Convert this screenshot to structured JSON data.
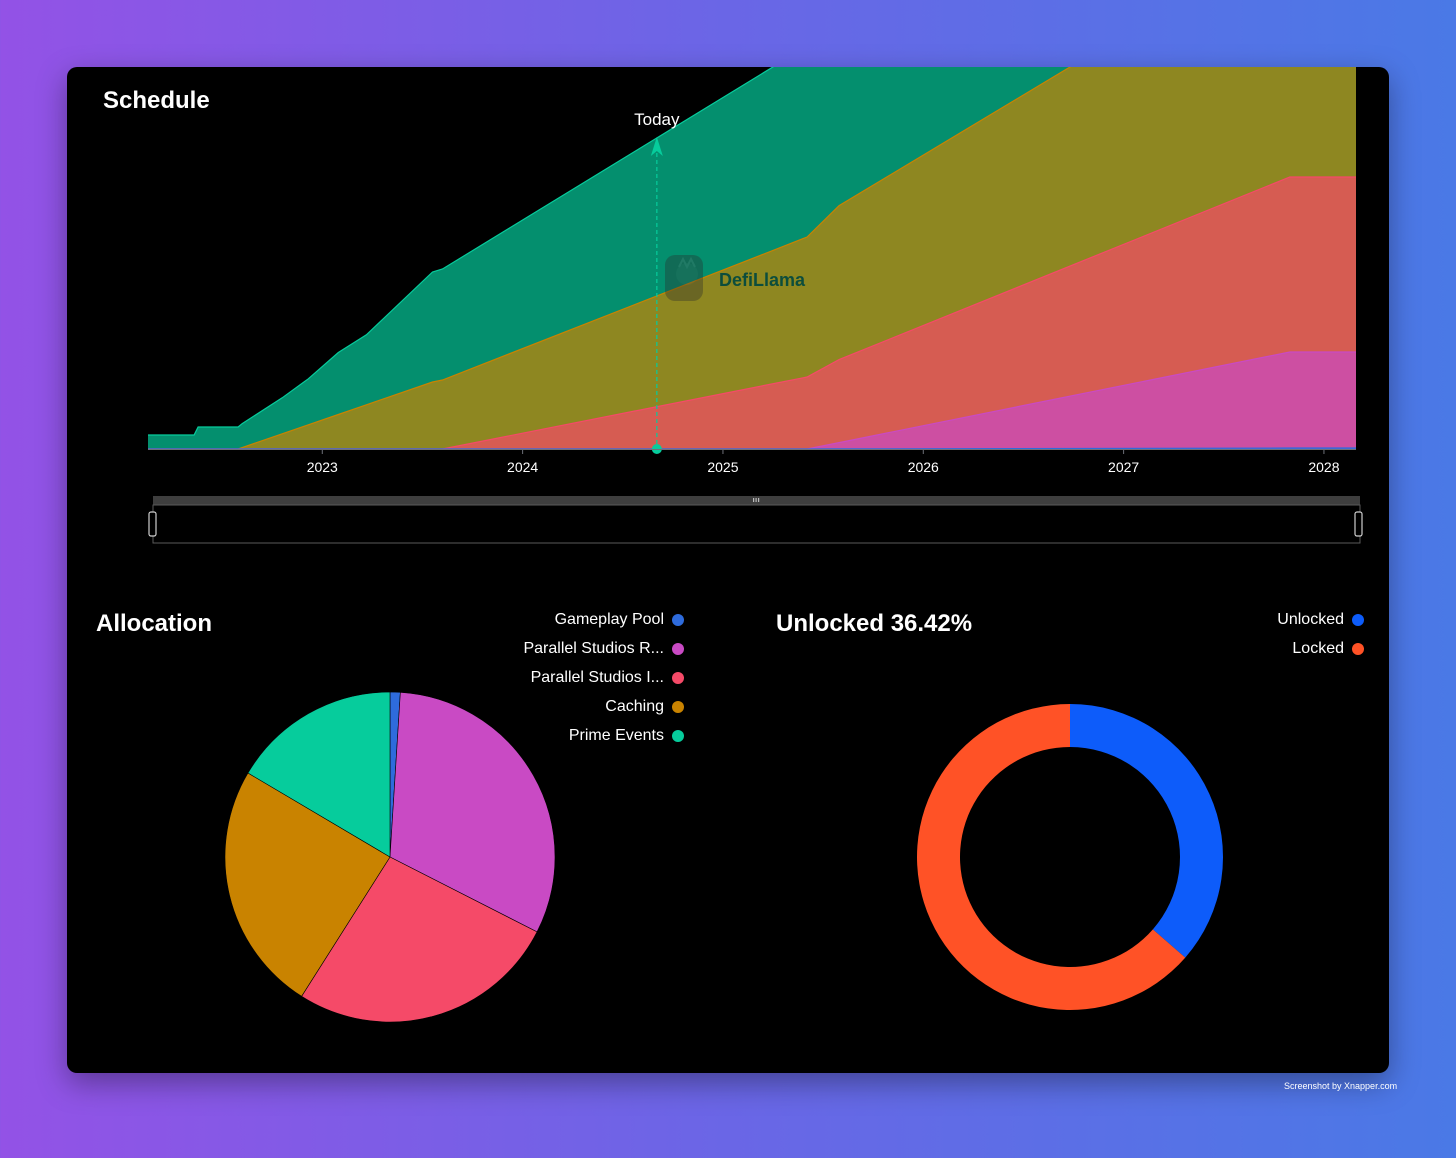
{
  "schedule": {
    "title": "Schedule",
    "today_label": "Today",
    "brand_watermark": "DefiLlama"
  },
  "allocation": {
    "title": "Allocation"
  },
  "unlocked": {
    "title": "Unlocked 36.42%"
  },
  "screenshot_credit": "Screenshot by Xnapper.com",
  "colors": {
    "gameplay_pool": "#2e6bdc",
    "parallel_studios_r": "#c94ac4",
    "parallel_studios_i": "#f54a68",
    "caching": "#c98300",
    "prime_events": "#06cc9c",
    "unlocked": "#0d5cfa",
    "locked": "#ff5226"
  },
  "chart_data": [
    {
      "type": "area",
      "stacked": true,
      "title": "Schedule",
      "x_unit": "year",
      "x_ticks": [
        "2023",
        "2024",
        "2025",
        "2026",
        "2027",
        "2028"
      ],
      "xlim": [
        2022.13,
        2028.16
      ],
      "today_marker": 2024.67,
      "series": [
        {
          "name": "Gameplay Pool",
          "color": "#2e6bdc",
          "points": [
            [
              2022.13,
              0
            ],
            [
              2025.4,
              0
            ],
            [
              2027.9,
              1
            ],
            [
              2028.16,
              1
            ]
          ]
        },
        {
          "name": "Parallel Studios R...",
          "color": "#c94ac4",
          "points": [
            [
              2022.13,
              0
            ],
            [
              2025.42,
              0
            ],
            [
              2027.83,
              96
            ],
            [
              2028.16,
              96
            ]
          ]
        },
        {
          "name": "Parallel Studios I...",
          "color": "#f54a68",
          "points": [
            [
              2022.13,
              0
            ],
            [
              2023.6,
              0
            ],
            [
              2025.42,
              72
            ],
            [
              2025.58,
              83
            ],
            [
              2027.83,
              175
            ],
            [
              2028.16,
              175
            ]
          ]
        },
        {
          "name": "Caching",
          "color": "#c98300",
          "points": [
            [
              2022.13,
              0
            ],
            [
              2022.58,
              0
            ],
            [
              2023.55,
              67
            ],
            [
              2025.42,
              140
            ],
            [
              2025.58,
              154
            ],
            [
              2027.83,
              242
            ],
            [
              2028.16,
              242
            ]
          ]
        },
        {
          "name": "Prime Events",
          "color": "#06cc9c",
          "points": [
            [
              2022.13,
              14
            ],
            [
              2022.36,
              14
            ],
            [
              2022.38,
              22
            ],
            [
              2022.58,
              22
            ],
            [
              2022.6,
              24
            ],
            [
              2022.6,
              28
            ],
            [
              2022.8,
              36
            ],
            [
              2022.8,
              42
            ],
            [
              2022.93,
              46
            ],
            [
              2022.93,
              55
            ],
            [
              2023.08,
              62
            ],
            [
              2023.08,
              67
            ],
            [
              2023.22,
              70
            ],
            [
              2023.22,
              82
            ],
            [
              2023.55,
              110
            ],
            [
              2023.6,
              111
            ],
            [
              2025.42,
              191
            ],
            [
              2025.58,
              197
            ],
            [
              2027.83,
              286
            ],
            [
              2028.16,
              286
            ]
          ]
        }
      ]
    },
    {
      "type": "pie",
      "title": "Allocation",
      "legend_position": "top-right",
      "slices": [
        {
          "label": "Gameplay Pool",
          "value": 1,
          "color": "#2e6bdc"
        },
        {
          "label": "Parallel Studios R...",
          "value": 31.5,
          "color": "#c94ac4"
        },
        {
          "label": "Parallel Studios I...",
          "value": 26.5,
          "color": "#f54a68"
        },
        {
          "label": "Caching",
          "value": 24.5,
          "color": "#c98300"
        },
        {
          "label": "Prime Events",
          "value": 16.5,
          "color": "#06cc9c"
        }
      ]
    },
    {
      "type": "pie",
      "subtype": "donut",
      "title": "Unlocked 36.42%",
      "legend_position": "top-right",
      "slices": [
        {
          "label": "Unlocked",
          "value": 36.42,
          "color": "#0d5cfa"
        },
        {
          "label": "Locked",
          "value": 63.58,
          "color": "#ff5226"
        }
      ]
    }
  ]
}
